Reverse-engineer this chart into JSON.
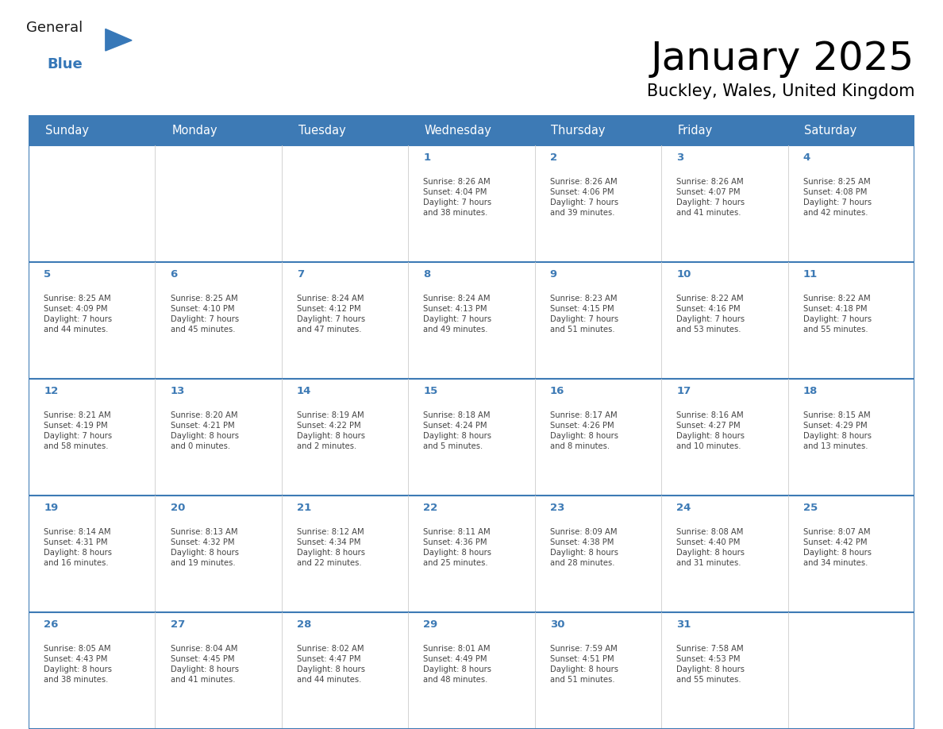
{
  "title": "January 2025",
  "subtitle": "Buckley, Wales, United Kingdom",
  "header_bg": "#3D7AB5",
  "header_text_color": "#FFFFFF",
  "header_font_size": 10.5,
  "day_names": [
    "Sunday",
    "Monday",
    "Tuesday",
    "Wednesday",
    "Thursday",
    "Friday",
    "Saturday"
  ],
  "title_font_size": 36,
  "subtitle_font_size": 15,
  "cell_text_color": "#444444",
  "day_num_color": "#3D7AB5",
  "grid_color": "#3D7AB5",
  "bg_color": "#FFFFFF",
  "logo_general_color": "#1a1a1a",
  "logo_blue_color": "#3778B8",
  "weeks": [
    [
      {
        "day": 0,
        "info": ""
      },
      {
        "day": 0,
        "info": ""
      },
      {
        "day": 0,
        "info": ""
      },
      {
        "day": 1,
        "info": "Sunrise: 8:26 AM\nSunset: 4:04 PM\nDaylight: 7 hours\nand 38 minutes."
      },
      {
        "day": 2,
        "info": "Sunrise: 8:26 AM\nSunset: 4:06 PM\nDaylight: 7 hours\nand 39 minutes."
      },
      {
        "day": 3,
        "info": "Sunrise: 8:26 AM\nSunset: 4:07 PM\nDaylight: 7 hours\nand 41 minutes."
      },
      {
        "day": 4,
        "info": "Sunrise: 8:25 AM\nSunset: 4:08 PM\nDaylight: 7 hours\nand 42 minutes."
      }
    ],
    [
      {
        "day": 5,
        "info": "Sunrise: 8:25 AM\nSunset: 4:09 PM\nDaylight: 7 hours\nand 44 minutes."
      },
      {
        "day": 6,
        "info": "Sunrise: 8:25 AM\nSunset: 4:10 PM\nDaylight: 7 hours\nand 45 minutes."
      },
      {
        "day": 7,
        "info": "Sunrise: 8:24 AM\nSunset: 4:12 PM\nDaylight: 7 hours\nand 47 minutes."
      },
      {
        "day": 8,
        "info": "Sunrise: 8:24 AM\nSunset: 4:13 PM\nDaylight: 7 hours\nand 49 minutes."
      },
      {
        "day": 9,
        "info": "Sunrise: 8:23 AM\nSunset: 4:15 PM\nDaylight: 7 hours\nand 51 minutes."
      },
      {
        "day": 10,
        "info": "Sunrise: 8:22 AM\nSunset: 4:16 PM\nDaylight: 7 hours\nand 53 minutes."
      },
      {
        "day": 11,
        "info": "Sunrise: 8:22 AM\nSunset: 4:18 PM\nDaylight: 7 hours\nand 55 minutes."
      }
    ],
    [
      {
        "day": 12,
        "info": "Sunrise: 8:21 AM\nSunset: 4:19 PM\nDaylight: 7 hours\nand 58 minutes."
      },
      {
        "day": 13,
        "info": "Sunrise: 8:20 AM\nSunset: 4:21 PM\nDaylight: 8 hours\nand 0 minutes."
      },
      {
        "day": 14,
        "info": "Sunrise: 8:19 AM\nSunset: 4:22 PM\nDaylight: 8 hours\nand 2 minutes."
      },
      {
        "day": 15,
        "info": "Sunrise: 8:18 AM\nSunset: 4:24 PM\nDaylight: 8 hours\nand 5 minutes."
      },
      {
        "day": 16,
        "info": "Sunrise: 8:17 AM\nSunset: 4:26 PM\nDaylight: 8 hours\nand 8 minutes."
      },
      {
        "day": 17,
        "info": "Sunrise: 8:16 AM\nSunset: 4:27 PM\nDaylight: 8 hours\nand 10 minutes."
      },
      {
        "day": 18,
        "info": "Sunrise: 8:15 AM\nSunset: 4:29 PM\nDaylight: 8 hours\nand 13 minutes."
      }
    ],
    [
      {
        "day": 19,
        "info": "Sunrise: 8:14 AM\nSunset: 4:31 PM\nDaylight: 8 hours\nand 16 minutes."
      },
      {
        "day": 20,
        "info": "Sunrise: 8:13 AM\nSunset: 4:32 PM\nDaylight: 8 hours\nand 19 minutes."
      },
      {
        "day": 21,
        "info": "Sunrise: 8:12 AM\nSunset: 4:34 PM\nDaylight: 8 hours\nand 22 minutes."
      },
      {
        "day": 22,
        "info": "Sunrise: 8:11 AM\nSunset: 4:36 PM\nDaylight: 8 hours\nand 25 minutes."
      },
      {
        "day": 23,
        "info": "Sunrise: 8:09 AM\nSunset: 4:38 PM\nDaylight: 8 hours\nand 28 minutes."
      },
      {
        "day": 24,
        "info": "Sunrise: 8:08 AM\nSunset: 4:40 PM\nDaylight: 8 hours\nand 31 minutes."
      },
      {
        "day": 25,
        "info": "Sunrise: 8:07 AM\nSunset: 4:42 PM\nDaylight: 8 hours\nand 34 minutes."
      }
    ],
    [
      {
        "day": 26,
        "info": "Sunrise: 8:05 AM\nSunset: 4:43 PM\nDaylight: 8 hours\nand 38 minutes."
      },
      {
        "day": 27,
        "info": "Sunrise: 8:04 AM\nSunset: 4:45 PM\nDaylight: 8 hours\nand 41 minutes."
      },
      {
        "day": 28,
        "info": "Sunrise: 8:02 AM\nSunset: 4:47 PM\nDaylight: 8 hours\nand 44 minutes."
      },
      {
        "day": 29,
        "info": "Sunrise: 8:01 AM\nSunset: 4:49 PM\nDaylight: 8 hours\nand 48 minutes."
      },
      {
        "day": 30,
        "info": "Sunrise: 7:59 AM\nSunset: 4:51 PM\nDaylight: 8 hours\nand 51 minutes."
      },
      {
        "day": 31,
        "info": "Sunrise: 7:58 AM\nSunset: 4:53 PM\nDaylight: 8 hours\nand 55 minutes."
      },
      {
        "day": 0,
        "info": ""
      }
    ]
  ]
}
